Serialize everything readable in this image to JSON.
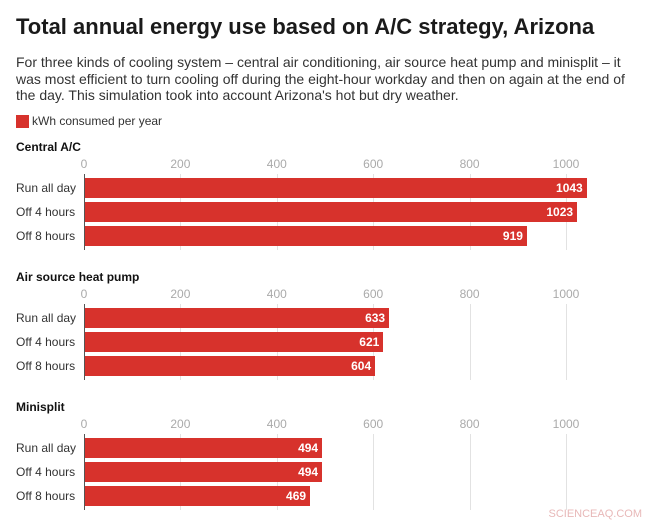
{
  "chart_data": {
    "type": "bar",
    "orientation": "horizontal",
    "title": "Total annual energy use based on A/C strategy, Arizona",
    "subtitle": "For three kinds of cooling system – central air conditioning, air source heat pump and minisplit – it was most efficient to turn cooling off during the eight-hour workday and then on again at the end of the day. This simulation took into account Arizona's hot but dry weather.",
    "legend": {
      "label": "kWh consumed per year",
      "placement": "top-left"
    },
    "color": "#d7322c",
    "xlim": [
      0,
      1000
    ],
    "ticks": [
      "0",
      "200",
      "400",
      "600",
      "800",
      "1000"
    ],
    "tick_values": [
      0,
      200,
      400,
      600,
      800,
      1000
    ],
    "grid": true,
    "categories": [
      "Run all day",
      "Off 4 hours",
      "Off 8 hours"
    ],
    "panels": [
      {
        "title": "Central A/C",
        "values": [
          1043,
          1023,
          919
        ]
      },
      {
        "title": "Air source heat pump",
        "values": [
          633,
          621,
          604
        ]
      },
      {
        "title": "Minisplit",
        "values": [
          494,
          494,
          469
        ]
      }
    ]
  },
  "watermark": "SCIENCEAQ.COM"
}
